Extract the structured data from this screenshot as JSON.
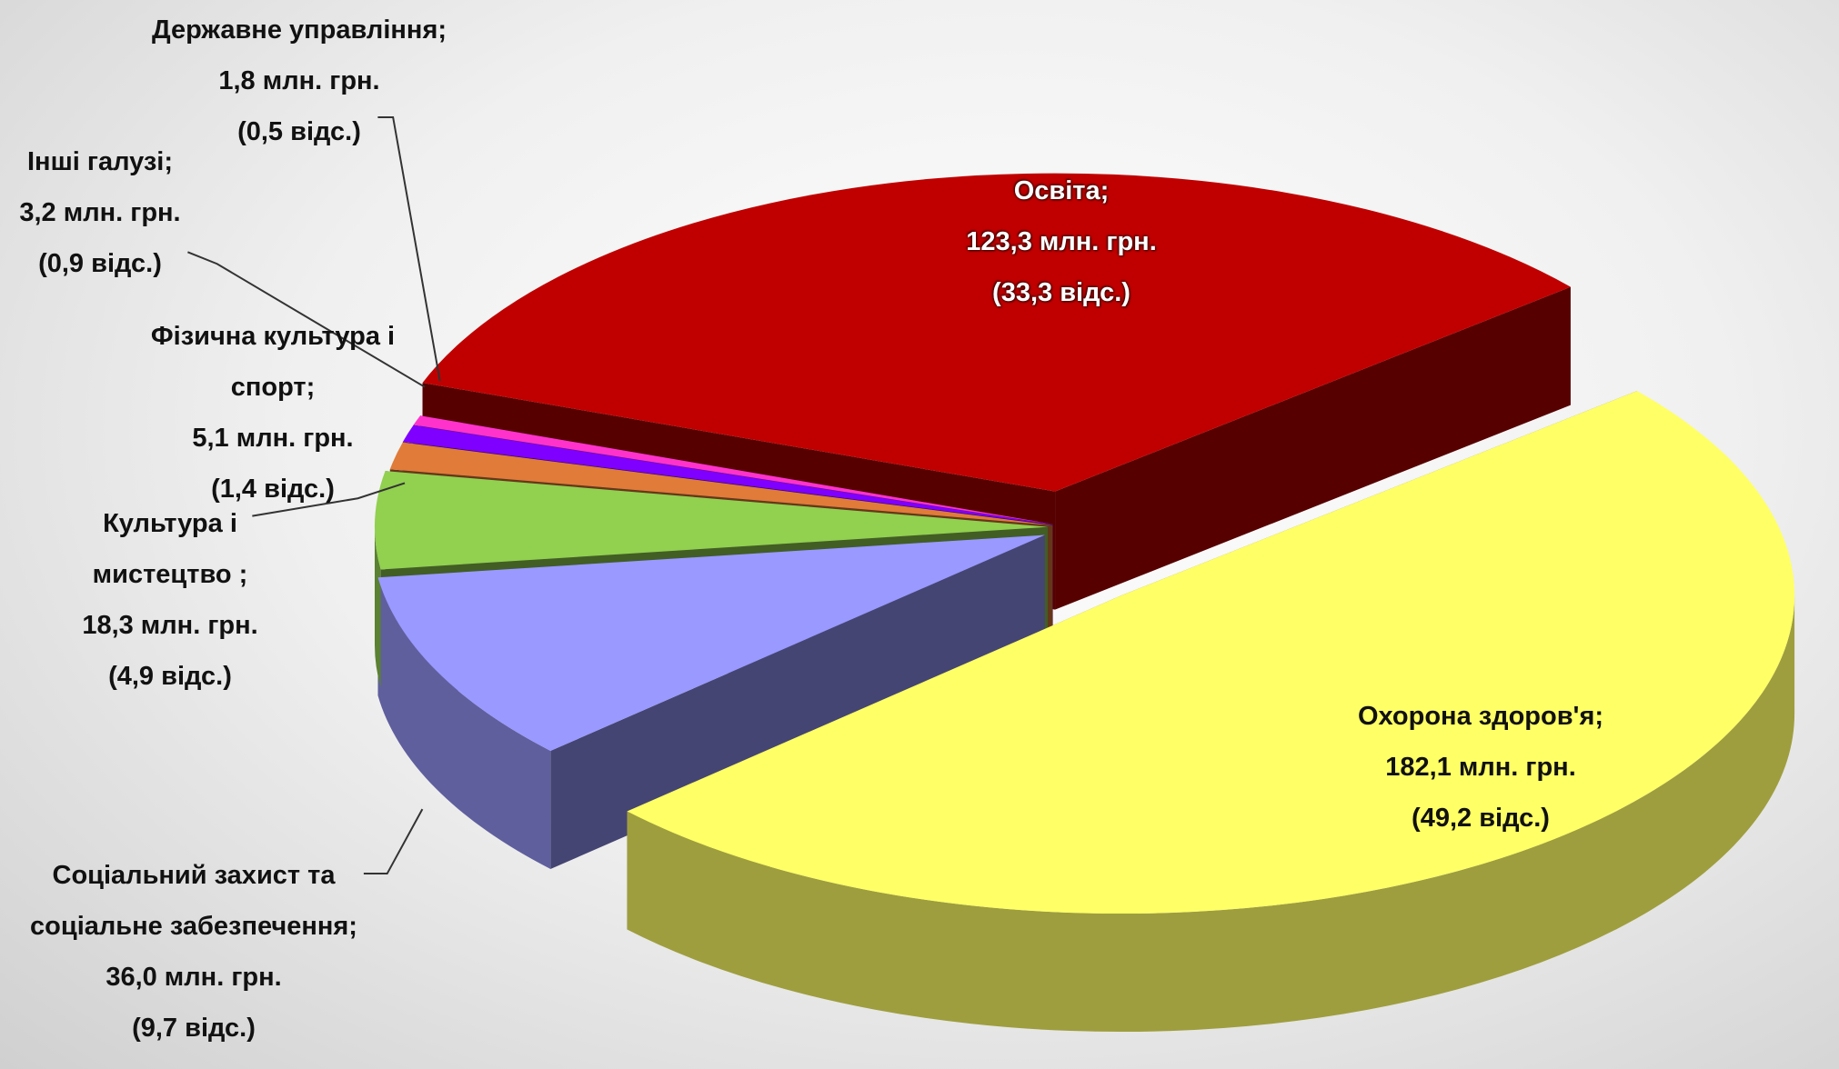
{
  "chart_data": {
    "type": "pie",
    "categories": [
      "Освіта;",
      "Охорона здоров'я;",
      "Соціальний  захист та соціальне забезпечення;",
      "Культура і мистецтво ;",
      "Фізична культура і спорт;",
      "Інші галузі;",
      "Державне управління;"
    ],
    "values": [
      123.3,
      182.1,
      36.0,
      18.3,
      5.1,
      3.2,
      1.8
    ],
    "value_labels": [
      "123,3 млн. грн.",
      "182,1 млн. грн.",
      "36,0 млн. грн.",
      "18,3 млн. грн.",
      "5,1 млн. грн.",
      "3,2 млн. грн.",
      "1,8 млн. грн."
    ],
    "percent_labels": [
      "(33,3 відс.)",
      "(49,2 відс.)",
      "(9,7 відс.)",
      "(4,9 відс.)",
      "(1,4 відс.)",
      "(0,9 відс.)",
      "(0,5 відс.)"
    ],
    "colors": [
      "#c00000",
      "#ffff66",
      "#9999ff",
      "#92d050",
      "#e07b39",
      "#7f00ff",
      "#ff33cc"
    ]
  }
}
